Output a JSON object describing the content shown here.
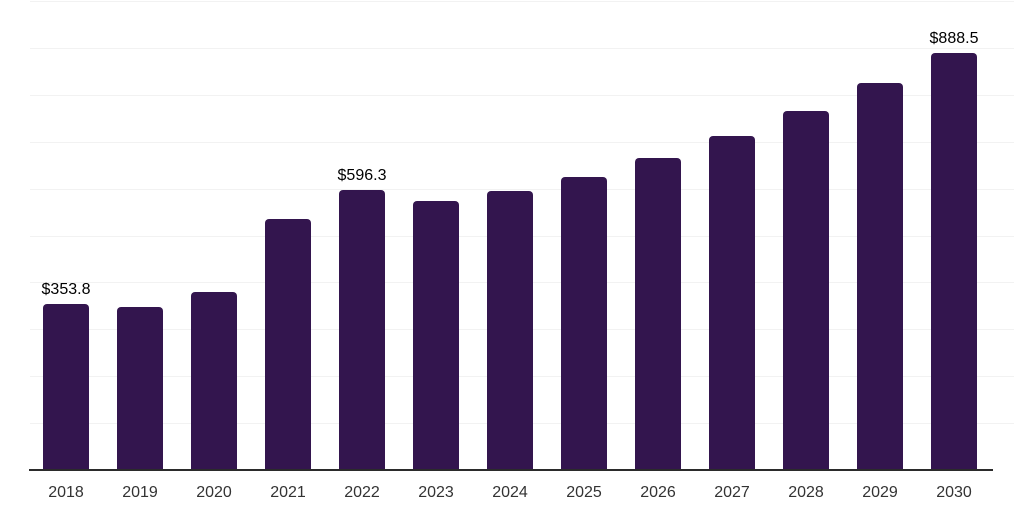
{
  "chart_data": {
    "type": "bar",
    "title": "",
    "xlabel": "",
    "ylabel": "",
    "categories": [
      "2018",
      "2019",
      "2020",
      "2021",
      "2022",
      "2023",
      "2024",
      "2025",
      "2026",
      "2027",
      "2028",
      "2029",
      "2030"
    ],
    "values": [
      353.8,
      347.4,
      378.6,
      534.9,
      596.3,
      573.2,
      594.3,
      624.4,
      664.9,
      711.6,
      765.1,
      824.7,
      888.5
    ],
    "value_labels": [
      "$353.8",
      "",
      "",
      "",
      "$596.3",
      "",
      "",
      "",
      "",
      "",
      "",
      "",
      "$888.5"
    ],
    "ylim": [
      0,
      1000
    ],
    "gridline_step": 100,
    "grid": "horizontal-only",
    "legend": "none"
  },
  "style": {
    "background": "#FFFFFF",
    "bar_color": "#33154E",
    "axis_color": "#2B2B2B",
    "gridline_color": "#F2F2F2",
    "value_label_color": "#000000",
    "tick_label_color": "#333333"
  }
}
